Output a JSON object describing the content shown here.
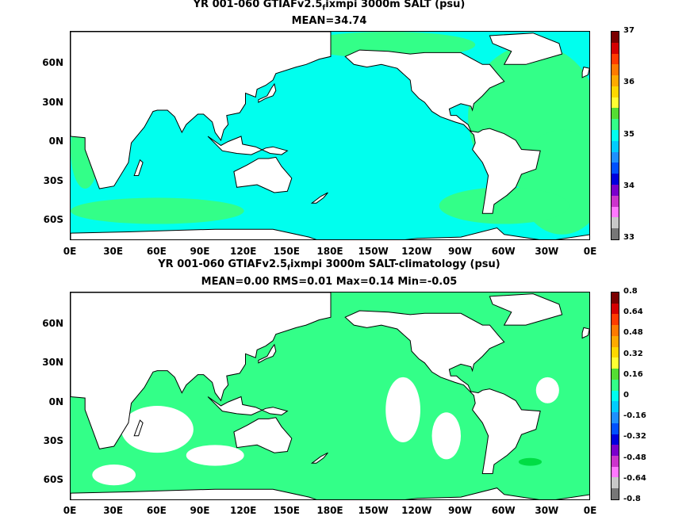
{
  "top": {
    "title_main": "YR 001-060 GTIAFv2.5",
    "title_sub": "f",
    "title_rest": "ixmpi 3000m SALT (psu)",
    "subtitle": "MEAN=34.74",
    "colorbar_labels": [
      "37",
      "36",
      "35",
      "34",
      "33"
    ],
    "colorbar_colors": [
      "#7a0000",
      "#d40000",
      "#ff3b00",
      "#ff7a00",
      "#ffaa00",
      "#ffd800",
      "#ffff33",
      "#55dd33",
      "#33ff88",
      "#00ffee",
      "#00ccff",
      "#1e90ff",
      "#0050ff",
      "#0000dd",
      "#7a00cc",
      "#cc33cc",
      "#ff77ff",
      "#c8c8c8",
      "#777777"
    ],
    "ocean_color": "#00ffee",
    "anomaly_color": "#33ff88"
  },
  "bottom": {
    "title_main": "YR 001-060 GTIAFv2.5",
    "title_sub": "f",
    "title_rest": "ixmpi 3000m SALT-climatology (psu)",
    "subtitle": "MEAN=0.00   RMS=0.01   Max=0.14   Min=-0.05",
    "colorbar_labels": [
      "0.8",
      "0.64",
      "0.48",
      "0.32",
      "0.16",
      "0",
      "-0.16",
      "-0.32",
      "-0.48",
      "-0.64",
      "-0.8"
    ],
    "colorbar_colors": [
      "#7a0000",
      "#d40000",
      "#ff3b00",
      "#ff7a00",
      "#ffaa00",
      "#ffd800",
      "#ffff33",
      "#55dd33",
      "#33ff88",
      "#00ffee",
      "#00ccff",
      "#1e90ff",
      "#0050ff",
      "#0000dd",
      "#7a00cc",
      "#cc33cc",
      "#ff77ff",
      "#c8c8c8",
      "#777777"
    ],
    "ocean_color": "#33ff88",
    "anomaly_color": "#99ff99"
  },
  "x_ticks": [
    "0E",
    "30E",
    "60E",
    "90E",
    "120E",
    "150E",
    "180E",
    "150W",
    "120W",
    "90W",
    "60W",
    "30W",
    "0E"
  ],
  "y_ticks": [
    "60N",
    "30N",
    "0N",
    "30S",
    "60S"
  ]
}
